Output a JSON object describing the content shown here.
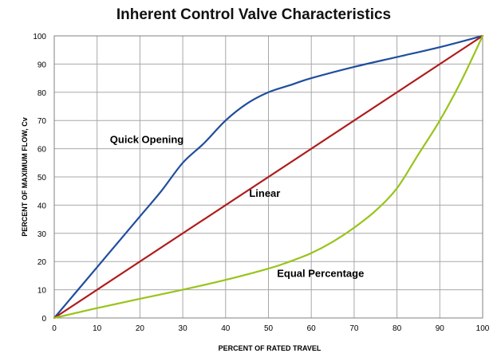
{
  "chart_data": {
    "type": "line",
    "title": "Inherent  Control Valve Characteristics",
    "xlabel": "PERCENT OF RATED TRAVEL",
    "ylabel": "PERCENT OF MAXIMUM FLOW, Cv",
    "xlim": [
      0,
      100
    ],
    "ylim": [
      0,
      100
    ],
    "xticks": [
      0,
      10,
      20,
      30,
      40,
      50,
      60,
      70,
      80,
      90,
      100
    ],
    "yticks": [
      0,
      10,
      20,
      30,
      40,
      50,
      60,
      70,
      80,
      90,
      100
    ],
    "grid": true,
    "series": [
      {
        "name": "Quick Opening",
        "color": "#1f4e9e",
        "x": [
          0,
          5,
          10,
          15,
          20,
          25,
          30,
          35,
          40,
          45,
          50,
          55,
          60,
          70,
          80,
          90,
          100
        ],
        "y": [
          0,
          9,
          18,
          27,
          36,
          45,
          55,
          62,
          70,
          76,
          80,
          82.5,
          85,
          89,
          92.5,
          96,
          100
        ]
      },
      {
        "name": "Linear",
        "color": "#b01c1c",
        "x": [
          0,
          100
        ],
        "y": [
          0,
          100
        ]
      },
      {
        "name": "Equal Percentage",
        "color": "#99c31a",
        "x": [
          0,
          10,
          20,
          30,
          40,
          50,
          55,
          60,
          65,
          70,
          75,
          80,
          85,
          90,
          95,
          100
        ],
        "y": [
          0,
          3.5,
          6.8,
          10,
          13.5,
          17.5,
          20,
          23,
          27,
          32,
          38,
          46,
          58,
          70,
          84,
          100
        ]
      }
    ],
    "annotations": [
      {
        "text": "Quick Opening",
        "x": 13,
        "y": 62
      },
      {
        "text": "Linear",
        "x": 45.5,
        "y": 43
      },
      {
        "text": "Equal Percentage",
        "x": 52,
        "y": 14.5
      }
    ]
  }
}
